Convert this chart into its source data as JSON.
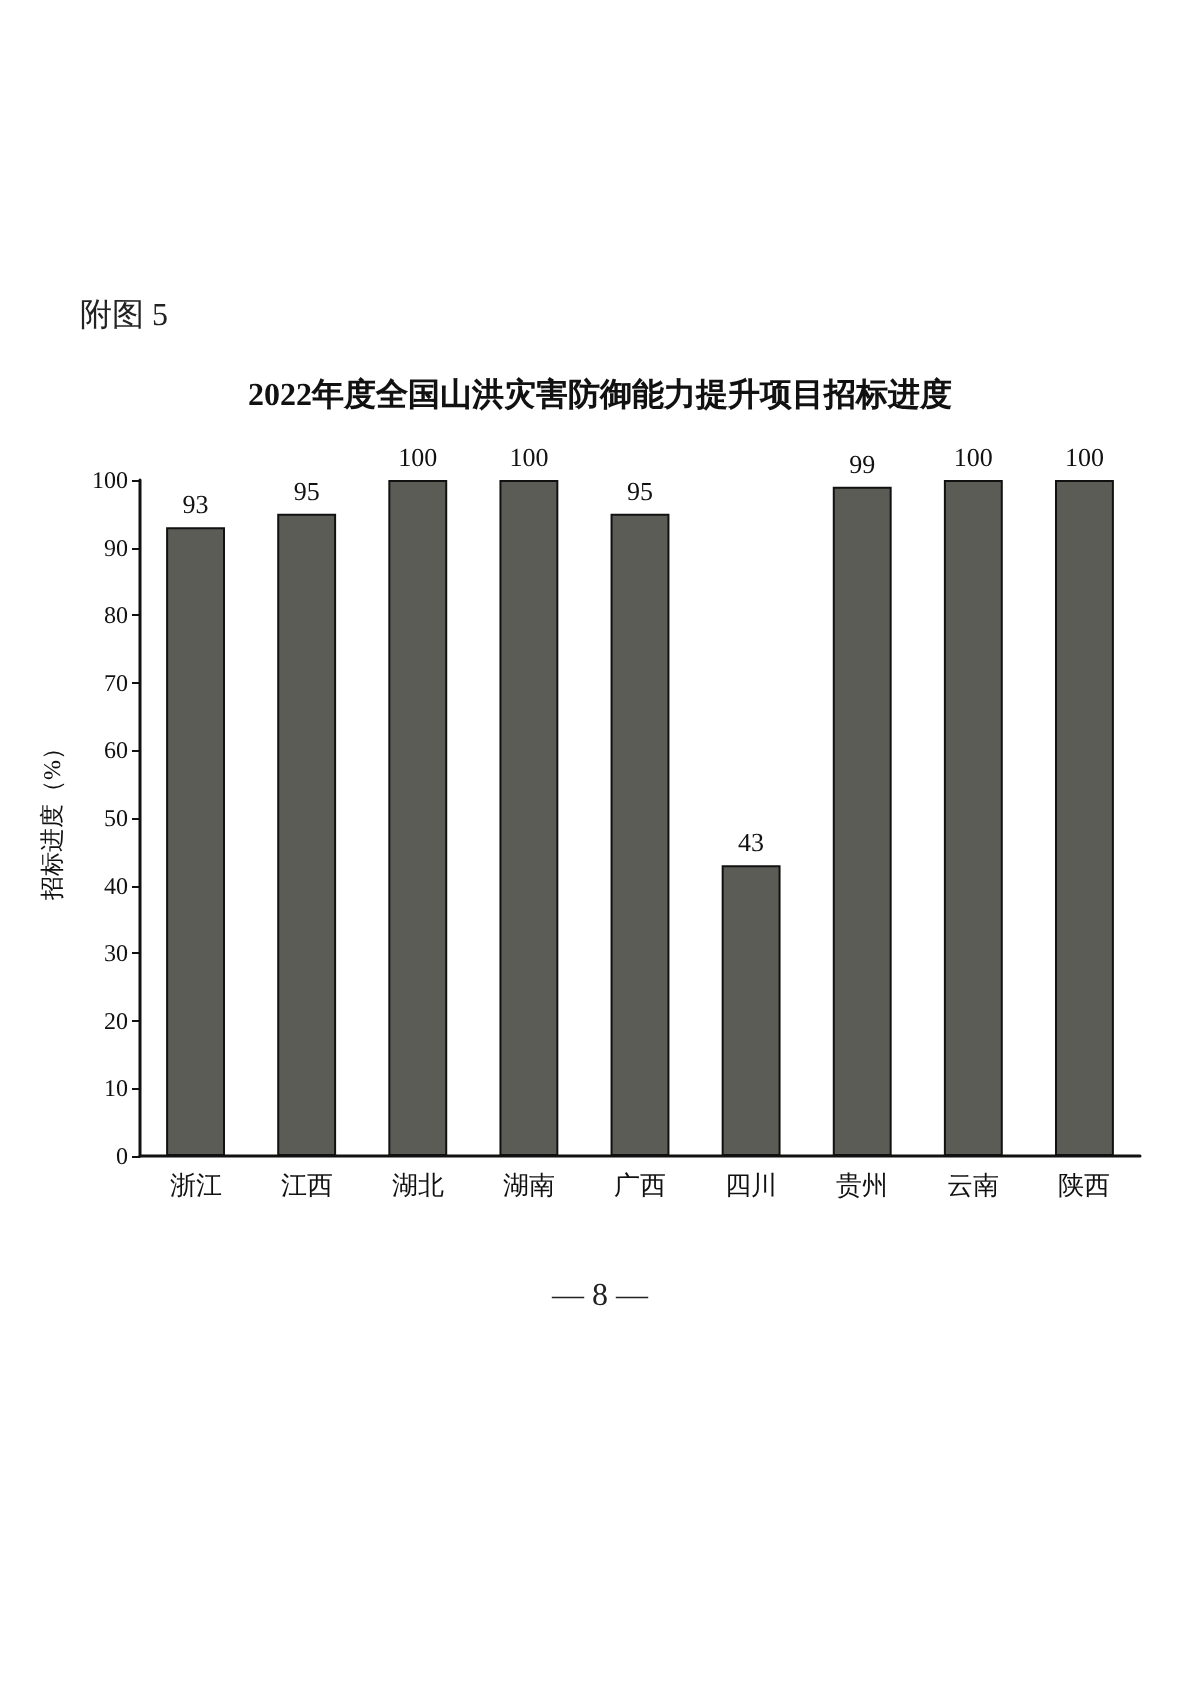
{
  "chart_data": {
    "type": "bar",
    "title": "2022年度全国山洪灾害防御能力提升项目招标进度",
    "ylabel": "招标进度（%）",
    "categories": [
      "浙江",
      "江西",
      "湖北",
      "湖南",
      "广西",
      "四川",
      "贵州",
      "云南",
      "陕西"
    ],
    "values": [
      93,
      95,
      100,
      100,
      95,
      43,
      99,
      100,
      100
    ],
    "color": "#5c5c57",
    "ylim": [
      0,
      100
    ],
    "yticks": [
      0,
      10,
      20,
      30,
      40,
      50,
      60,
      70,
      80,
      90,
      100
    ],
    "data_labels": true,
    "grid": false,
    "annotations": [
      "附图 5",
      "— 8 —"
    ]
  }
}
